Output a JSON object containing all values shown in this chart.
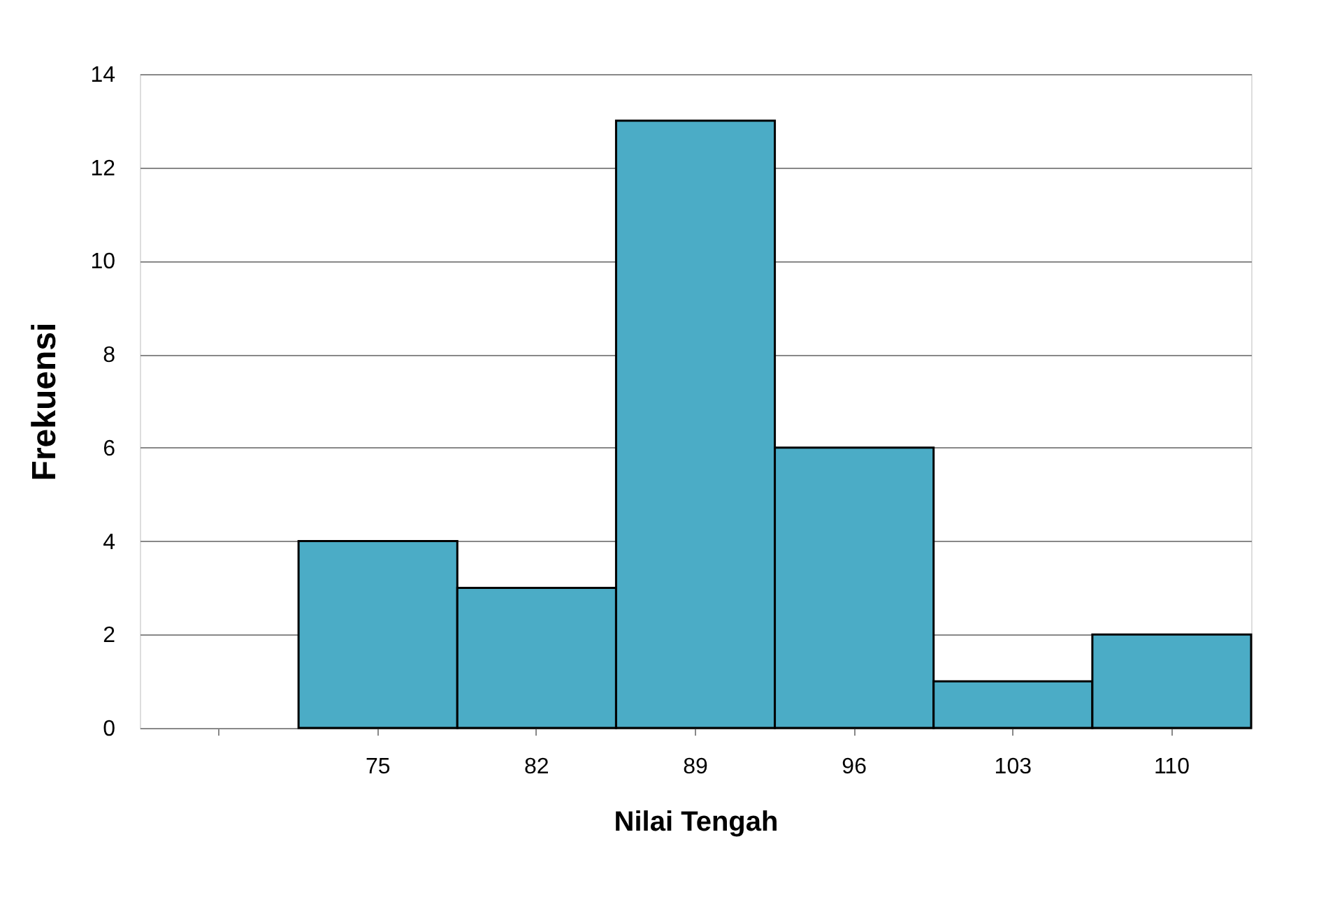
{
  "chart_data": {
    "type": "bar",
    "xlabel": "Nilai Tengah",
    "ylabel": "Frekuensi",
    "categories": [
      null,
      "75",
      "82",
      "89",
      "96",
      "103",
      "110"
    ],
    "values": [
      null,
      4,
      3,
      13,
      6,
      1,
      2
    ],
    "color": "#4bacc6",
    "ylim": [
      0,
      14
    ],
    "yticks": [
      0,
      2,
      4,
      6,
      8,
      10,
      12,
      14
    ],
    "grid": "y"
  }
}
